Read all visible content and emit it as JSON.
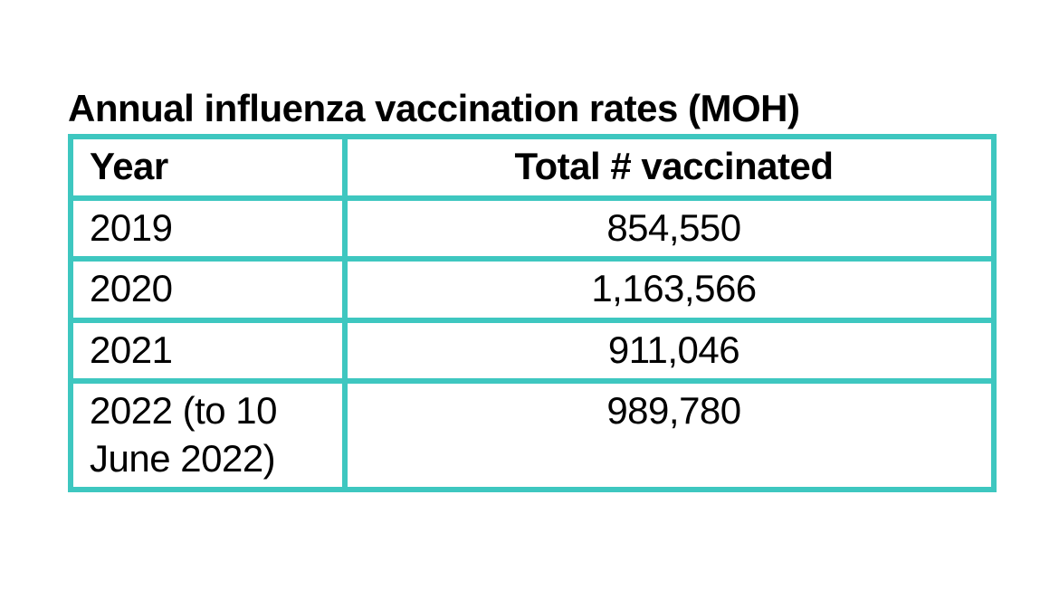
{
  "page": {
    "background": "#ffffff",
    "text_color": "#000000"
  },
  "title": "Annual influenza vaccination rates (MOH)",
  "table": {
    "border_color": "#3EC7C0",
    "columns": [
      "Year",
      "Total # vaccinated"
    ],
    "rows": [
      {
        "year": "2019",
        "total": "854,550"
      },
      {
        "year": "2020",
        "total": "1,163,566"
      },
      {
        "year": "2021",
        "total": "911,046"
      },
      {
        "year": "2022 (to 10 June 2022)",
        "total": "989,780"
      }
    ]
  },
  "chart_data": {
    "type": "table",
    "title": "Annual influenza vaccination rates (MOH)",
    "categories": [
      "2019",
      "2020",
      "2021",
      "2022 (to 10 June 2022)"
    ],
    "values": [
      854550,
      1163566,
      911046,
      989780
    ],
    "xlabel": "Year",
    "ylabel": "Total # vaccinated"
  }
}
